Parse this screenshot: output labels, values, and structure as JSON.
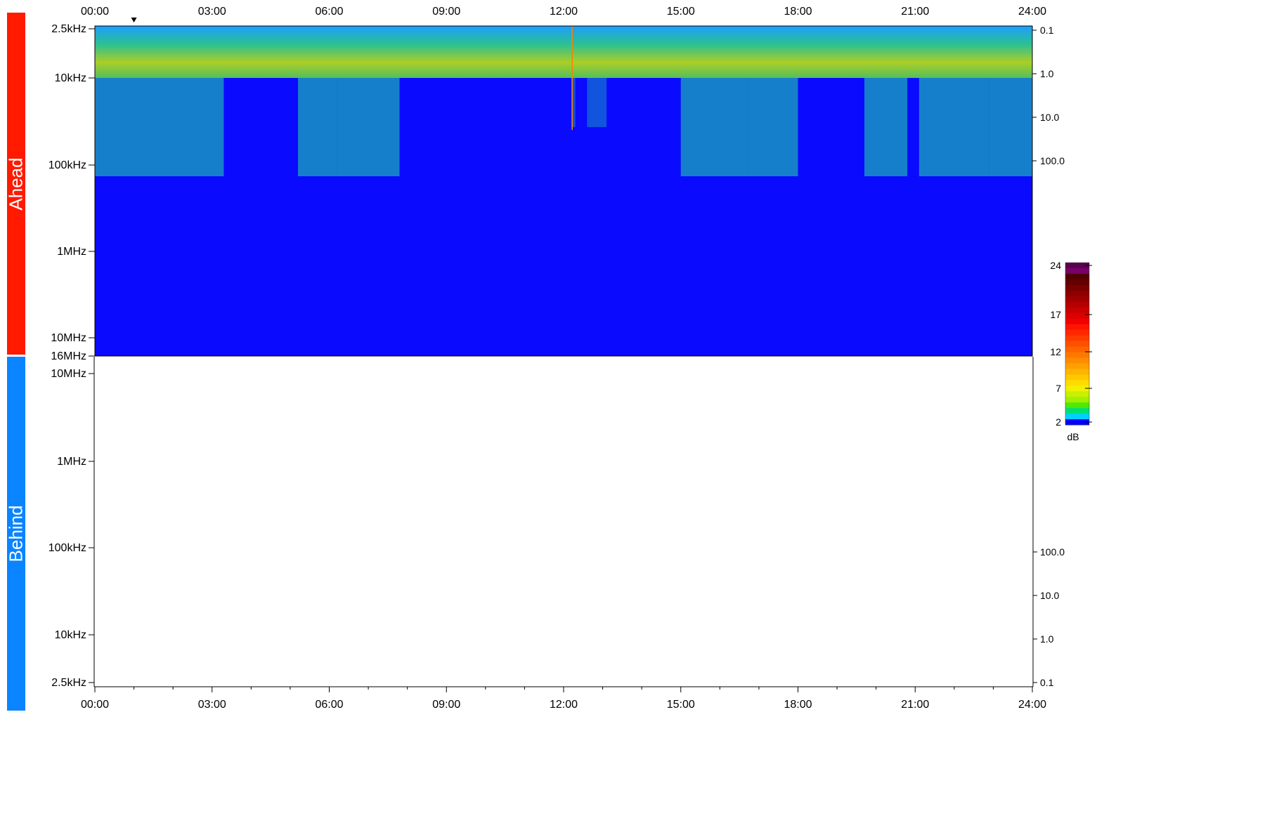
{
  "panels": {
    "ahead": {
      "label": "Ahead",
      "color": "#ff1a00"
    },
    "behind": {
      "label": "Behind",
      "color": "#0a84ff"
    }
  },
  "colorbar": {
    "unit": "dB",
    "ticks": [
      "24",
      "17",
      "12",
      "7",
      "2"
    ],
    "colors": [
      "#5a0050",
      "#780068",
      "#500000",
      "#640000",
      "#780000",
      "#8c0000",
      "#a00000",
      "#b40000",
      "#c80000",
      "#dc0000",
      "#f00000",
      "#ff1400",
      "#ff2800",
      "#ff3c00",
      "#ff5000",
      "#ff6400",
      "#ff7800",
      "#ff8c00",
      "#ffa000",
      "#ffb400",
      "#ffc800",
      "#ffdc00",
      "#f0f000",
      "#c8f000",
      "#a0f000",
      "#50e800",
      "#00e070",
      "#00d0ff",
      "#0000ff"
    ]
  },
  "chart_data": {
    "type": "heatmap",
    "title": "",
    "xlabel": "",
    "x_tick_labels": [
      "00:00",
      "03:00",
      "06:00",
      "09:00",
      "12:00",
      "15:00",
      "18:00",
      "21:00",
      "24:00"
    ],
    "x_range_hours": [
      0,
      24
    ],
    "top_panel": {
      "name": "Ahead",
      "y_tick_labels": [
        "2.5kHz",
        "10kHz",
        "100kHz",
        "1MHz",
        "10MHz",
        "16MHz"
      ],
      "right_tick_labels": [
        "0.1",
        "1.0",
        "10.0",
        "100.0"
      ],
      "marker_time_hours": 1.0,
      "activity_intervals_hours": [
        [
          0,
          1.8
        ],
        [
          1.8,
          3.3
        ],
        [
          5.2,
          6.2
        ],
        [
          6.2,
          7.8
        ],
        [
          12.2,
          12.3
        ],
        [
          12.6,
          13.1
        ],
        [
          15.0,
          16.7
        ],
        [
          16.7,
          18.0
        ],
        [
          19.7,
          20.8
        ],
        [
          21.1,
          22.9
        ],
        [
          22.9,
          24.0
        ]
      ],
      "background": "#0a0aff"
    },
    "bottom_panel": {
      "name": "Behind",
      "y_tick_labels": [
        "10MHz",
        "1MHz",
        "100kHz",
        "10kHz",
        "2.5kHz"
      ],
      "right_tick_labels": [
        "100.0",
        "10.0",
        "1.0",
        "0.1"
      ]
    }
  }
}
